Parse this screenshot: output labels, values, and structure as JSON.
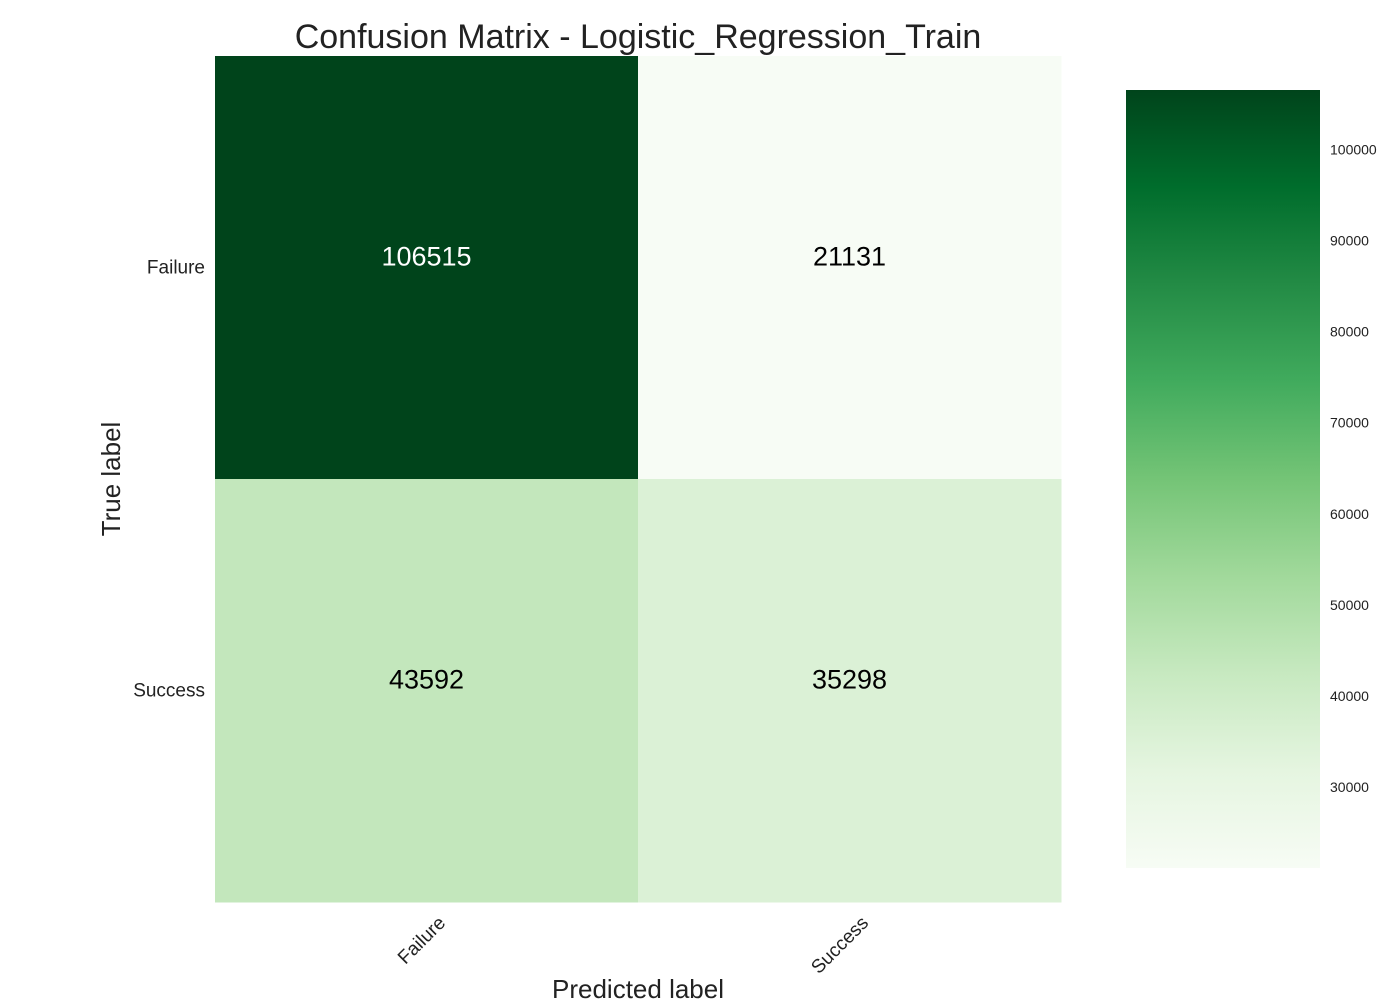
{
  "chart_data": {
    "type": "heatmap",
    "title": "Confusion Matrix - Logistic_Regression_Train",
    "xlabel": "Predicted label",
    "ylabel": "True label",
    "x_categories": [
      "Failure",
      "Success"
    ],
    "y_categories": [
      "Failure",
      "Success"
    ],
    "values": [
      [
        106515,
        21131
      ],
      [
        43592,
        35298
      ]
    ],
    "colormap": "Greens",
    "colorbar": {
      "range": [
        21131,
        106515
      ],
      "ticks": [
        30000,
        40000,
        50000,
        60000,
        70000,
        80000,
        90000,
        100000
      ],
      "tick_labels": [
        "30000",
        "40000",
        "50000",
        "60000",
        "70000",
        "80000",
        "90000",
        "100000"
      ]
    },
    "colors": {
      "low": "#f7fcf5",
      "high": "#00441b"
    },
    "grid": false
  }
}
